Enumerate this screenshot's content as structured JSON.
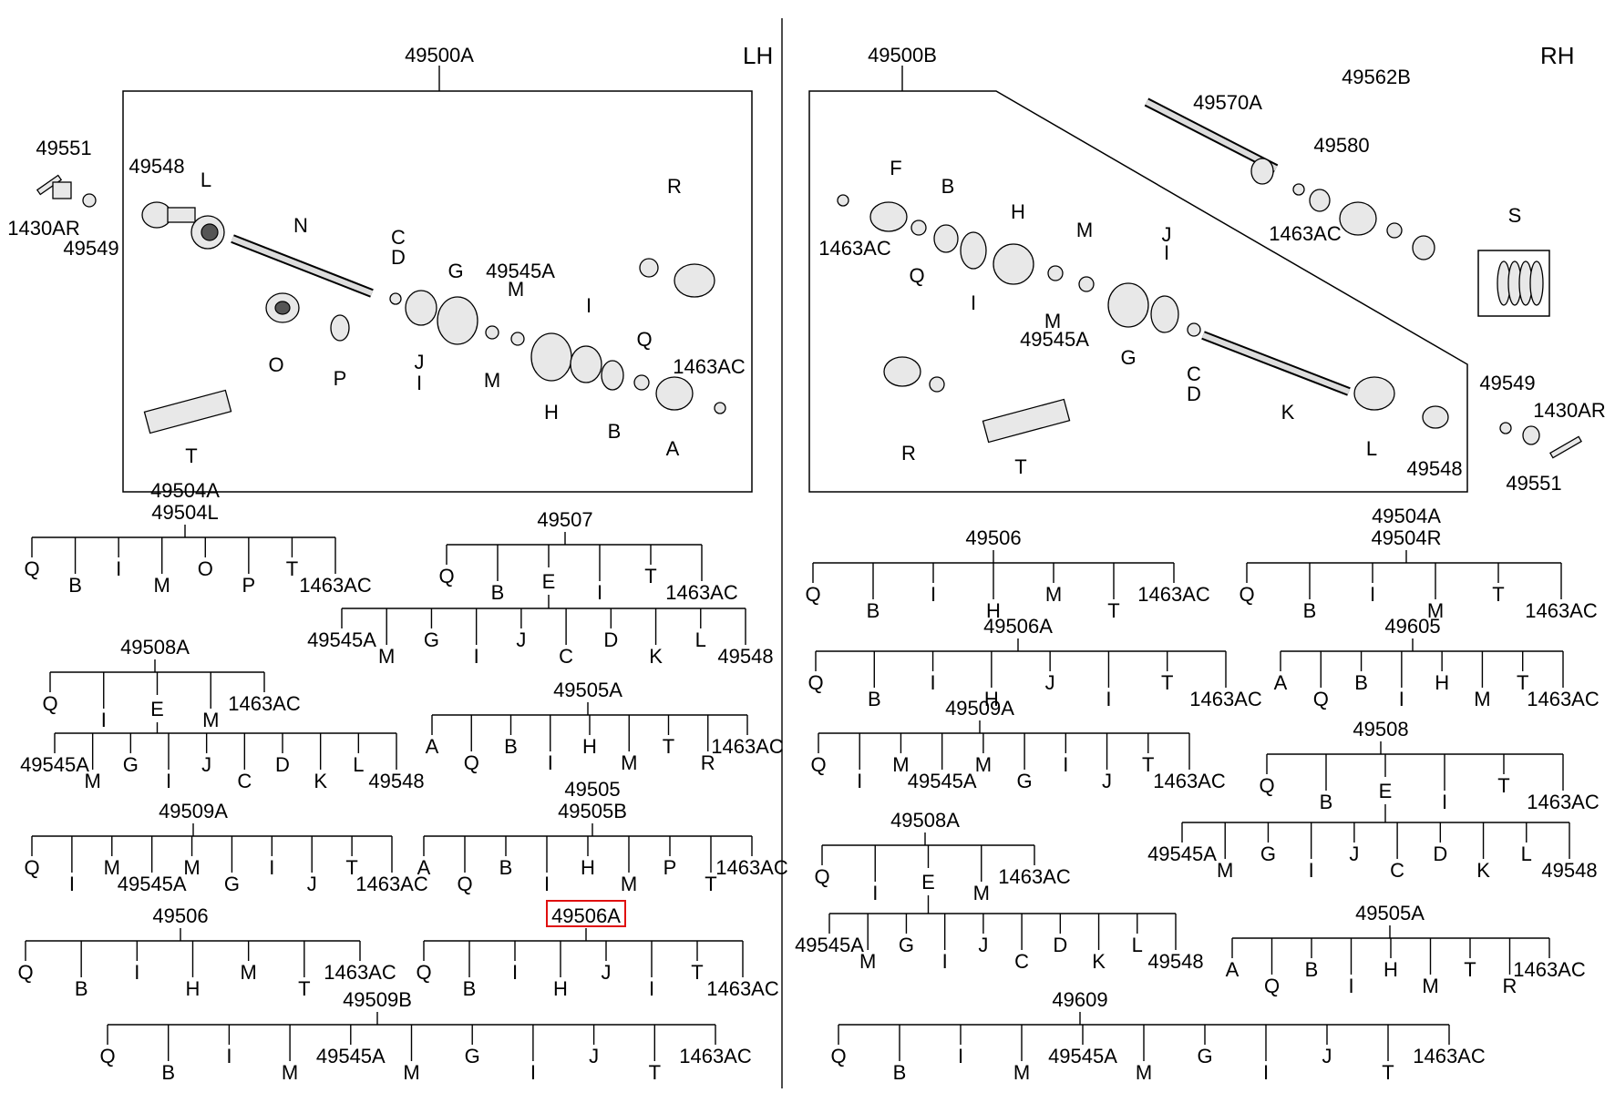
{
  "sides": {
    "lh": "LH",
    "rh": "RH"
  },
  "lh_panel": {
    "assembly": "49500A",
    "parts": [
      "49551",
      "49548",
      "L",
      "1430AR",
      "49549",
      "N",
      "R",
      "C",
      "D",
      "G",
      "49545A",
      "M",
      "I",
      "O",
      "P",
      "J",
      "I",
      "M",
      "H",
      "Q",
      "1463AC",
      "B",
      "A",
      "T"
    ]
  },
  "rh_panel": {
    "assembly": "49500B",
    "parts": [
      "49570A",
      "49562B",
      "49580",
      "F",
      "B",
      "H",
      "M",
      "J",
      "I",
      "1463AC",
      "Q",
      "I",
      "M",
      "49545A",
      "1463AC",
      "S",
      "G",
      "C",
      "D",
      "K",
      "R",
      "T",
      "L",
      "49548",
      "49549",
      "1430AR",
      "49551"
    ]
  },
  "trees": [
    {
      "titles": [
        "49504A",
        "49504L"
      ],
      "rows": [
        [
          "Q",
          "B",
          "I",
          "M",
          "O",
          "P",
          "T",
          "1463AC"
        ]
      ]
    },
    {
      "titles": [
        "49508A"
      ],
      "rows": [
        [
          "Q",
          "I",
          "E",
          "M",
          "1463AC"
        ],
        [
          "49545A",
          "M",
          "G",
          "I",
          "J",
          "C",
          "D",
          "K",
          "L",
          "49548"
        ]
      ]
    },
    {
      "titles": [
        "49509A"
      ],
      "rows": [
        [
          "Q",
          "I",
          "M",
          "49545A",
          "M",
          "G",
          "I",
          "J",
          "T",
          "1463AC"
        ]
      ]
    },
    {
      "titles": [
        "49506"
      ],
      "rows": [
        [
          "Q",
          "B",
          "I",
          "H",
          "M",
          "T",
          "1463AC"
        ]
      ]
    },
    {
      "titles": [
        "49509B"
      ],
      "rows": [
        [
          "Q",
          "B",
          "I",
          "M",
          "49545A",
          "M",
          "G",
          "I",
          "J",
          "T",
          "1463AC"
        ]
      ]
    },
    {
      "titles": [
        "49507"
      ],
      "rows": [
        [
          "Q",
          "B",
          "E",
          "I",
          "T",
          "1463AC"
        ],
        [
          "49545A",
          "M",
          "G",
          "I",
          "J",
          "C",
          "D",
          "K",
          "L",
          "49548"
        ]
      ]
    },
    {
      "titles": [
        "49505A"
      ],
      "rows": [
        [
          "A",
          "Q",
          "B",
          "I",
          "H",
          "M",
          "T",
          "R",
          "1463AC"
        ]
      ]
    },
    {
      "titles": [
        "49505",
        "49505B"
      ],
      "rows": [
        [
          "A",
          "Q",
          "B",
          "I",
          "H",
          "M",
          "P",
          "T",
          "1463AC"
        ]
      ]
    },
    {
      "titles": [
        "49506A"
      ],
      "highlighted": true,
      "rows": [
        [
          "Q",
          "B",
          "I",
          "H",
          "J",
          "I",
          "T",
          "1463AC"
        ]
      ]
    },
    {
      "titles": [
        "49506"
      ],
      "rows": [
        [
          "Q",
          "B",
          "I",
          "H",
          "M",
          "T",
          "1463AC"
        ]
      ]
    },
    {
      "titles": [
        "49506A"
      ],
      "rows": [
        [
          "Q",
          "B",
          "I",
          "H",
          "J",
          "I",
          "T",
          "1463AC"
        ]
      ]
    },
    {
      "titles": [
        "49509A"
      ],
      "rows": [
        [
          "Q",
          "I",
          "M",
          "49545A",
          "M",
          "G",
          "I",
          "J",
          "T",
          "1463AC"
        ]
      ]
    },
    {
      "titles": [
        "49508A"
      ],
      "rows": [
        [
          "Q",
          "I",
          "E",
          "M",
          "1463AC"
        ],
        [
          "49545A",
          "M",
          "G",
          "I",
          "J",
          "C",
          "D",
          "K",
          "L",
          "49548"
        ]
      ]
    },
    {
      "titles": [
        "49609"
      ],
      "rows": [
        [
          "Q",
          "B",
          "I",
          "M",
          "49545A",
          "M",
          "G",
          "I",
          "J",
          "T",
          "1463AC"
        ]
      ]
    },
    {
      "titles": [
        "49504A",
        "49504R"
      ],
      "rows": [
        [
          "Q",
          "B",
          "I",
          "M",
          "T",
          "1463AC"
        ]
      ]
    },
    {
      "titles": [
        "49605"
      ],
      "rows": [
        [
          "A",
          "Q",
          "B",
          "I",
          "H",
          "M",
          "T",
          "1463AC"
        ]
      ]
    },
    {
      "titles": [
        "49508"
      ],
      "rows": [
        [
          "Q",
          "B",
          "E",
          "I",
          "T",
          "1463AC"
        ],
        [
          "49545A",
          "M",
          "G",
          "I",
          "J",
          "C",
          "D",
          "K",
          "L",
          "49548"
        ]
      ]
    },
    {
      "titles": [
        "49505A"
      ],
      "rows": [
        [
          "A",
          "Q",
          "B",
          "I",
          "H",
          "M",
          "T",
          "R",
          "1463AC"
        ]
      ]
    }
  ]
}
